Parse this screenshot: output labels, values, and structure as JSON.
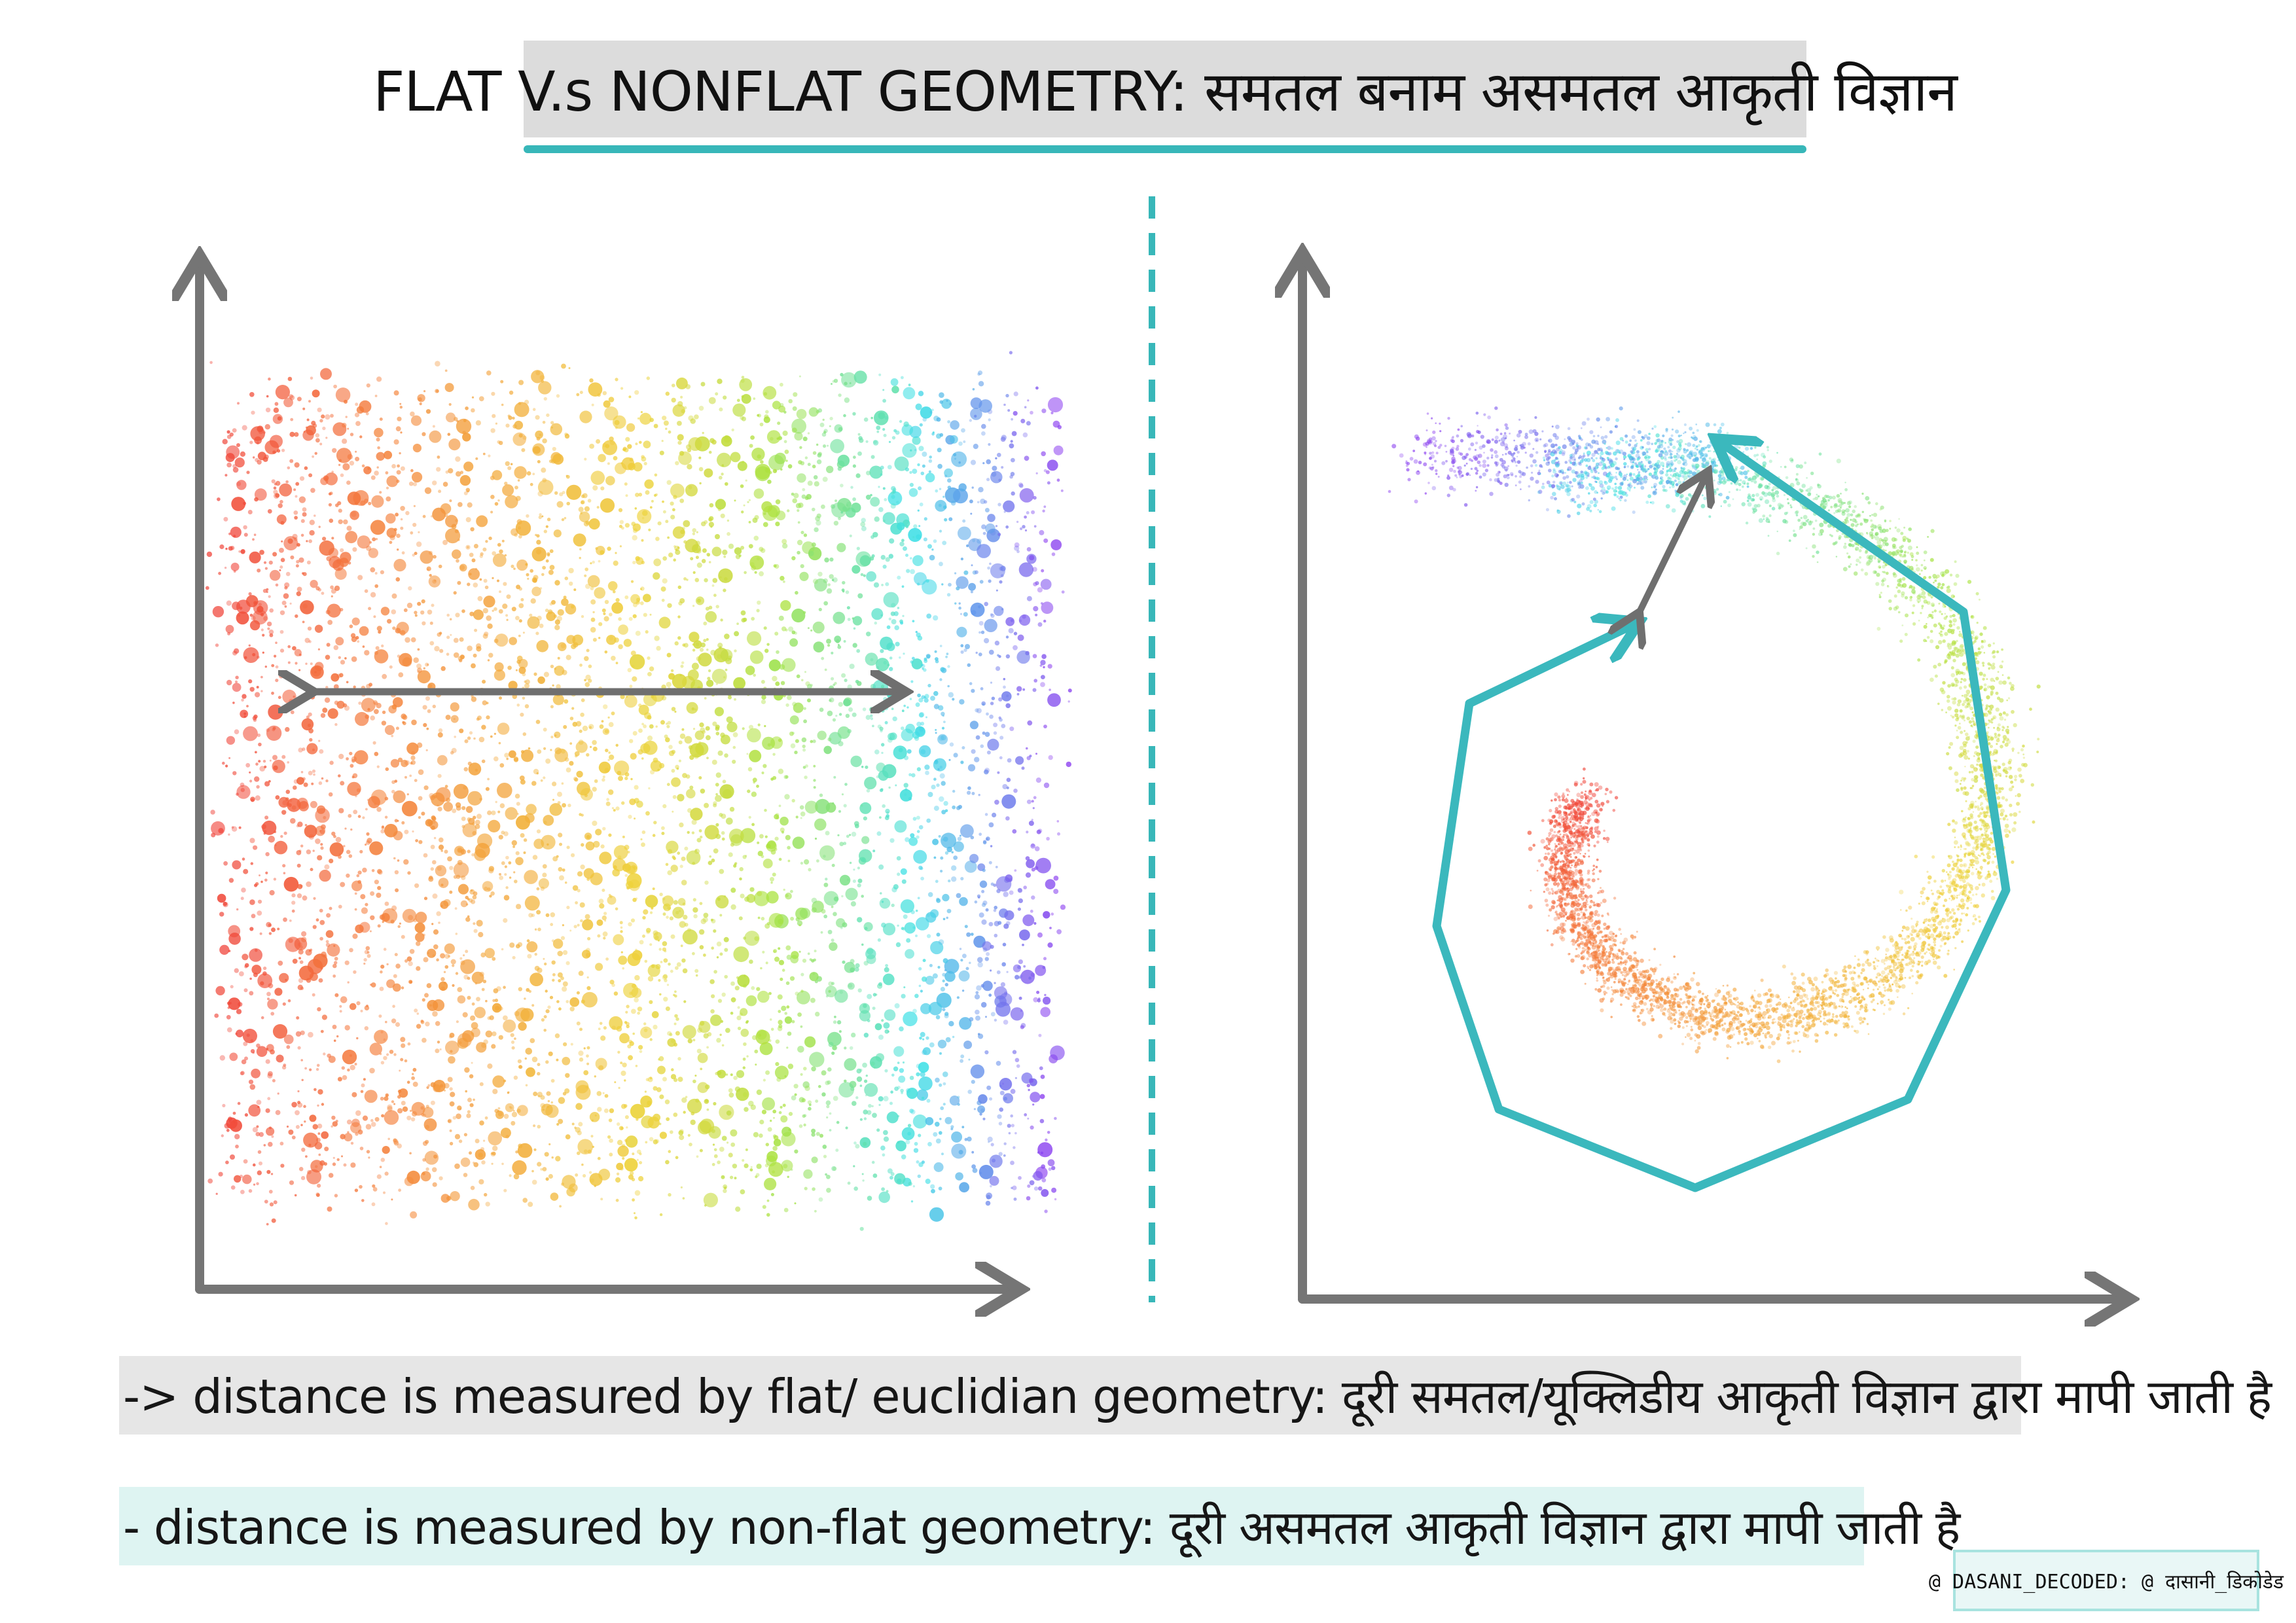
{
  "title": "FLAT V.s NONFLAT GEOMETRY: समतल बनाम असमतल आकृती विज्ञान",
  "captions": {
    "flat": "-> distance is measured by flat/ euclidian geometry: दूरी समतल/यूक्लिडीय आकृती विज्ञान द्वारा मापी जाती है",
    "nonflat": "- distance is measured by non-flat geometry: दूरी असमतल आकृती विज्ञान द्वारा मापी जाती है"
  },
  "credit": "@ DASANI_DECODED: @ दासानी_डिकोडेड",
  "colors": {
    "axis": "#757575",
    "arrow": "#6f6f6f",
    "path": "#3bb8bd",
    "divider": "#38b7b9",
    "title_bg": "#dcdcdc",
    "caption_flat_bg": "#e6e6e6",
    "caption_nonflat_bg": "#def4f2",
    "rainbow": [
      "#f0443a",
      "#f47a3b",
      "#f3a83a",
      "#eed23a",
      "#a9e23d",
      "#3fe0e6",
      "#8d3ff0"
    ]
  },
  "panels": {
    "left": {
      "kind": "flat scatter",
      "arrow": "straight double-headed arrow"
    },
    "right": {
      "kind": "spiral scatter",
      "arrow": "short double-headed arrow",
      "path": "polygonal geodesic path"
    }
  }
}
